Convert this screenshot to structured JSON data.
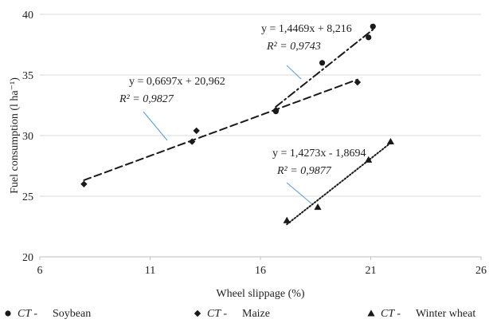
{
  "chart_data": {
    "type": "scatter",
    "xlabel": "Wheel slippage (%)",
    "ylabel": "Fuel consumption (l ha⁻¹)",
    "xlim": [
      6,
      26
    ],
    "ylim": [
      20,
      40
    ],
    "x_ticks": [
      "6",
      "11",
      "16",
      "21",
      "26"
    ],
    "y_ticks": [
      "20",
      "25",
      "30",
      "35",
      "40"
    ],
    "grid": "horizontal",
    "legend_position": "bottom",
    "colors": {
      "marker": "#1a1a1a",
      "grid": "#d9d9d9",
      "axis": "#bfbfbf",
      "pointer": "#5b9bd5"
    },
    "series": [
      {
        "name": "Soybean",
        "legend_prefix": "CT -",
        "marker": "circle",
        "line_style": "dashdot",
        "points": [
          [
            16.7,
            32.0
          ],
          [
            18.8,
            36.0
          ],
          [
            20.9,
            38.1
          ],
          [
            21.1,
            39.0
          ]
        ],
        "trendline": {
          "x_range": [
            16.7,
            21.1
          ],
          "slope": 1.4469,
          "intercept": 8.216
        },
        "equation": "y = 1,4469x + 8,216",
        "r2_label": "R² = 0,9743"
      },
      {
        "name": "Maize",
        "legend_prefix": "CT -",
        "marker": "diamond",
        "line_style": "dashed",
        "points": [
          [
            8.0,
            26.0
          ],
          [
            13.1,
            30.4
          ],
          [
            12.9,
            29.5
          ],
          [
            16.7,
            32.1
          ],
          [
            20.4,
            34.4
          ]
        ],
        "trendline": {
          "x_range": [
            8.0,
            20.4
          ],
          "slope": 0.6697,
          "intercept": 20.962
        },
        "equation": "y = 0,6697x + 20,962",
        "r2_label": "R² = 0,9827"
      },
      {
        "name": "Winter wheat",
        "legend_prefix": "CT -",
        "marker": "triangle",
        "line_style": "dotted",
        "points": [
          [
            17.2,
            23.0
          ],
          [
            18.6,
            24.1
          ],
          [
            20.9,
            28.0
          ],
          [
            21.9,
            29.5
          ]
        ],
        "trendline": {
          "x_range": [
            17.2,
            21.9
          ],
          "slope": 1.4273,
          "intercept": -1.8694
        },
        "equation": "y = 1,4273x - 1,8694",
        "r2_label": "R² = 0,9877"
      }
    ]
  }
}
